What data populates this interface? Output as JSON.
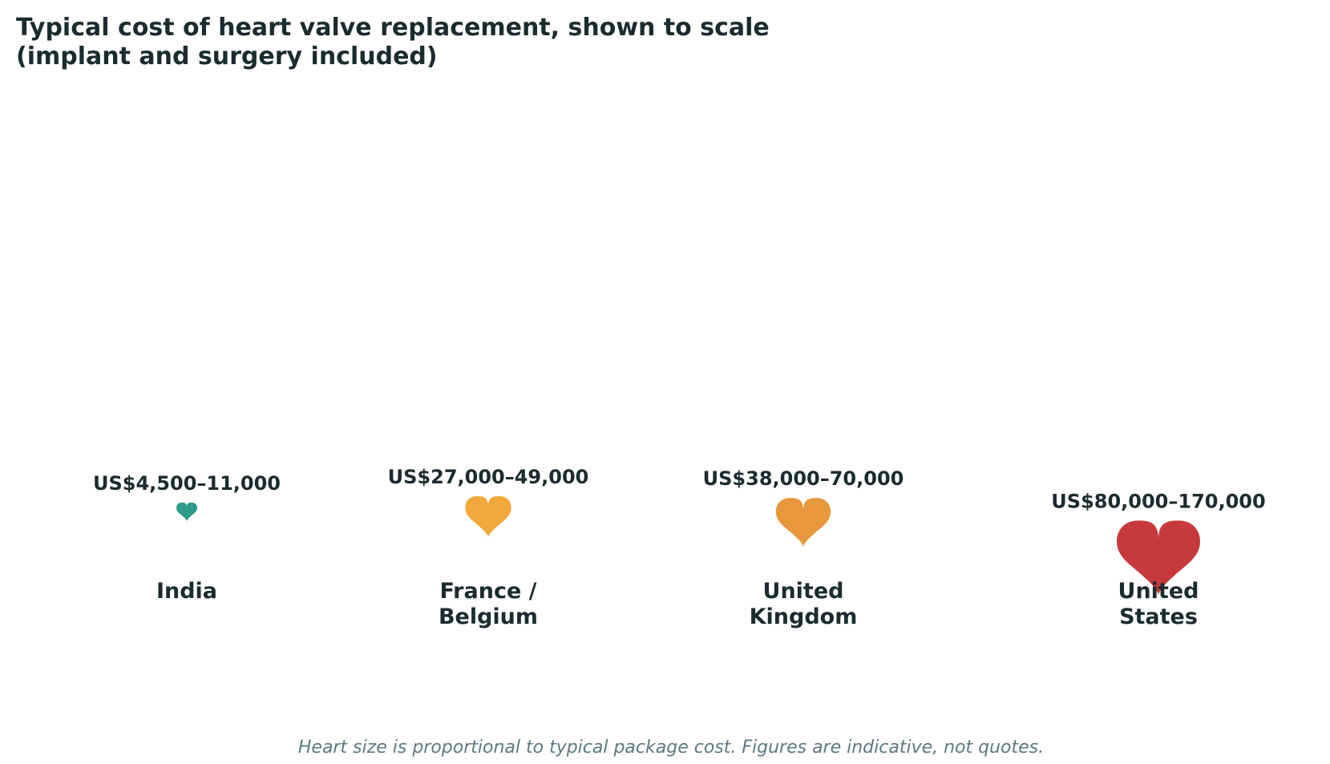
{
  "chart_data": {
    "type": "pictogram",
    "title": [
      "Typical cost of heart valve replacement, shown to scale",
      "(implant and surgery included)"
    ],
    "value_unit": "US$",
    "categories": [
      {
        "name": [
          "India"
        ],
        "range_label": "US$4,500–11,000",
        "low": 4500,
        "high": 11000,
        "color": "#2d9b8c"
      },
      {
        "name": [
          "France /",
          "Belgium"
        ],
        "range_label": "US$27,000–49,000",
        "low": 27000,
        "high": 49000,
        "color": "#f0a83c"
      },
      {
        "name": [
          "United",
          "Kingdom"
        ],
        "range_label": "US$38,000–70,000",
        "low": 38000,
        "high": 70000,
        "color": "#e7983c"
      },
      {
        "name": [
          "United",
          "States"
        ],
        "range_label": "US$80,000–170,000",
        "low": 80000,
        "high": 170000,
        "color": "#c8393d"
      }
    ],
    "footnote": "Heart size is proportional to typical package cost. Figures are indicative, not quotes."
  }
}
